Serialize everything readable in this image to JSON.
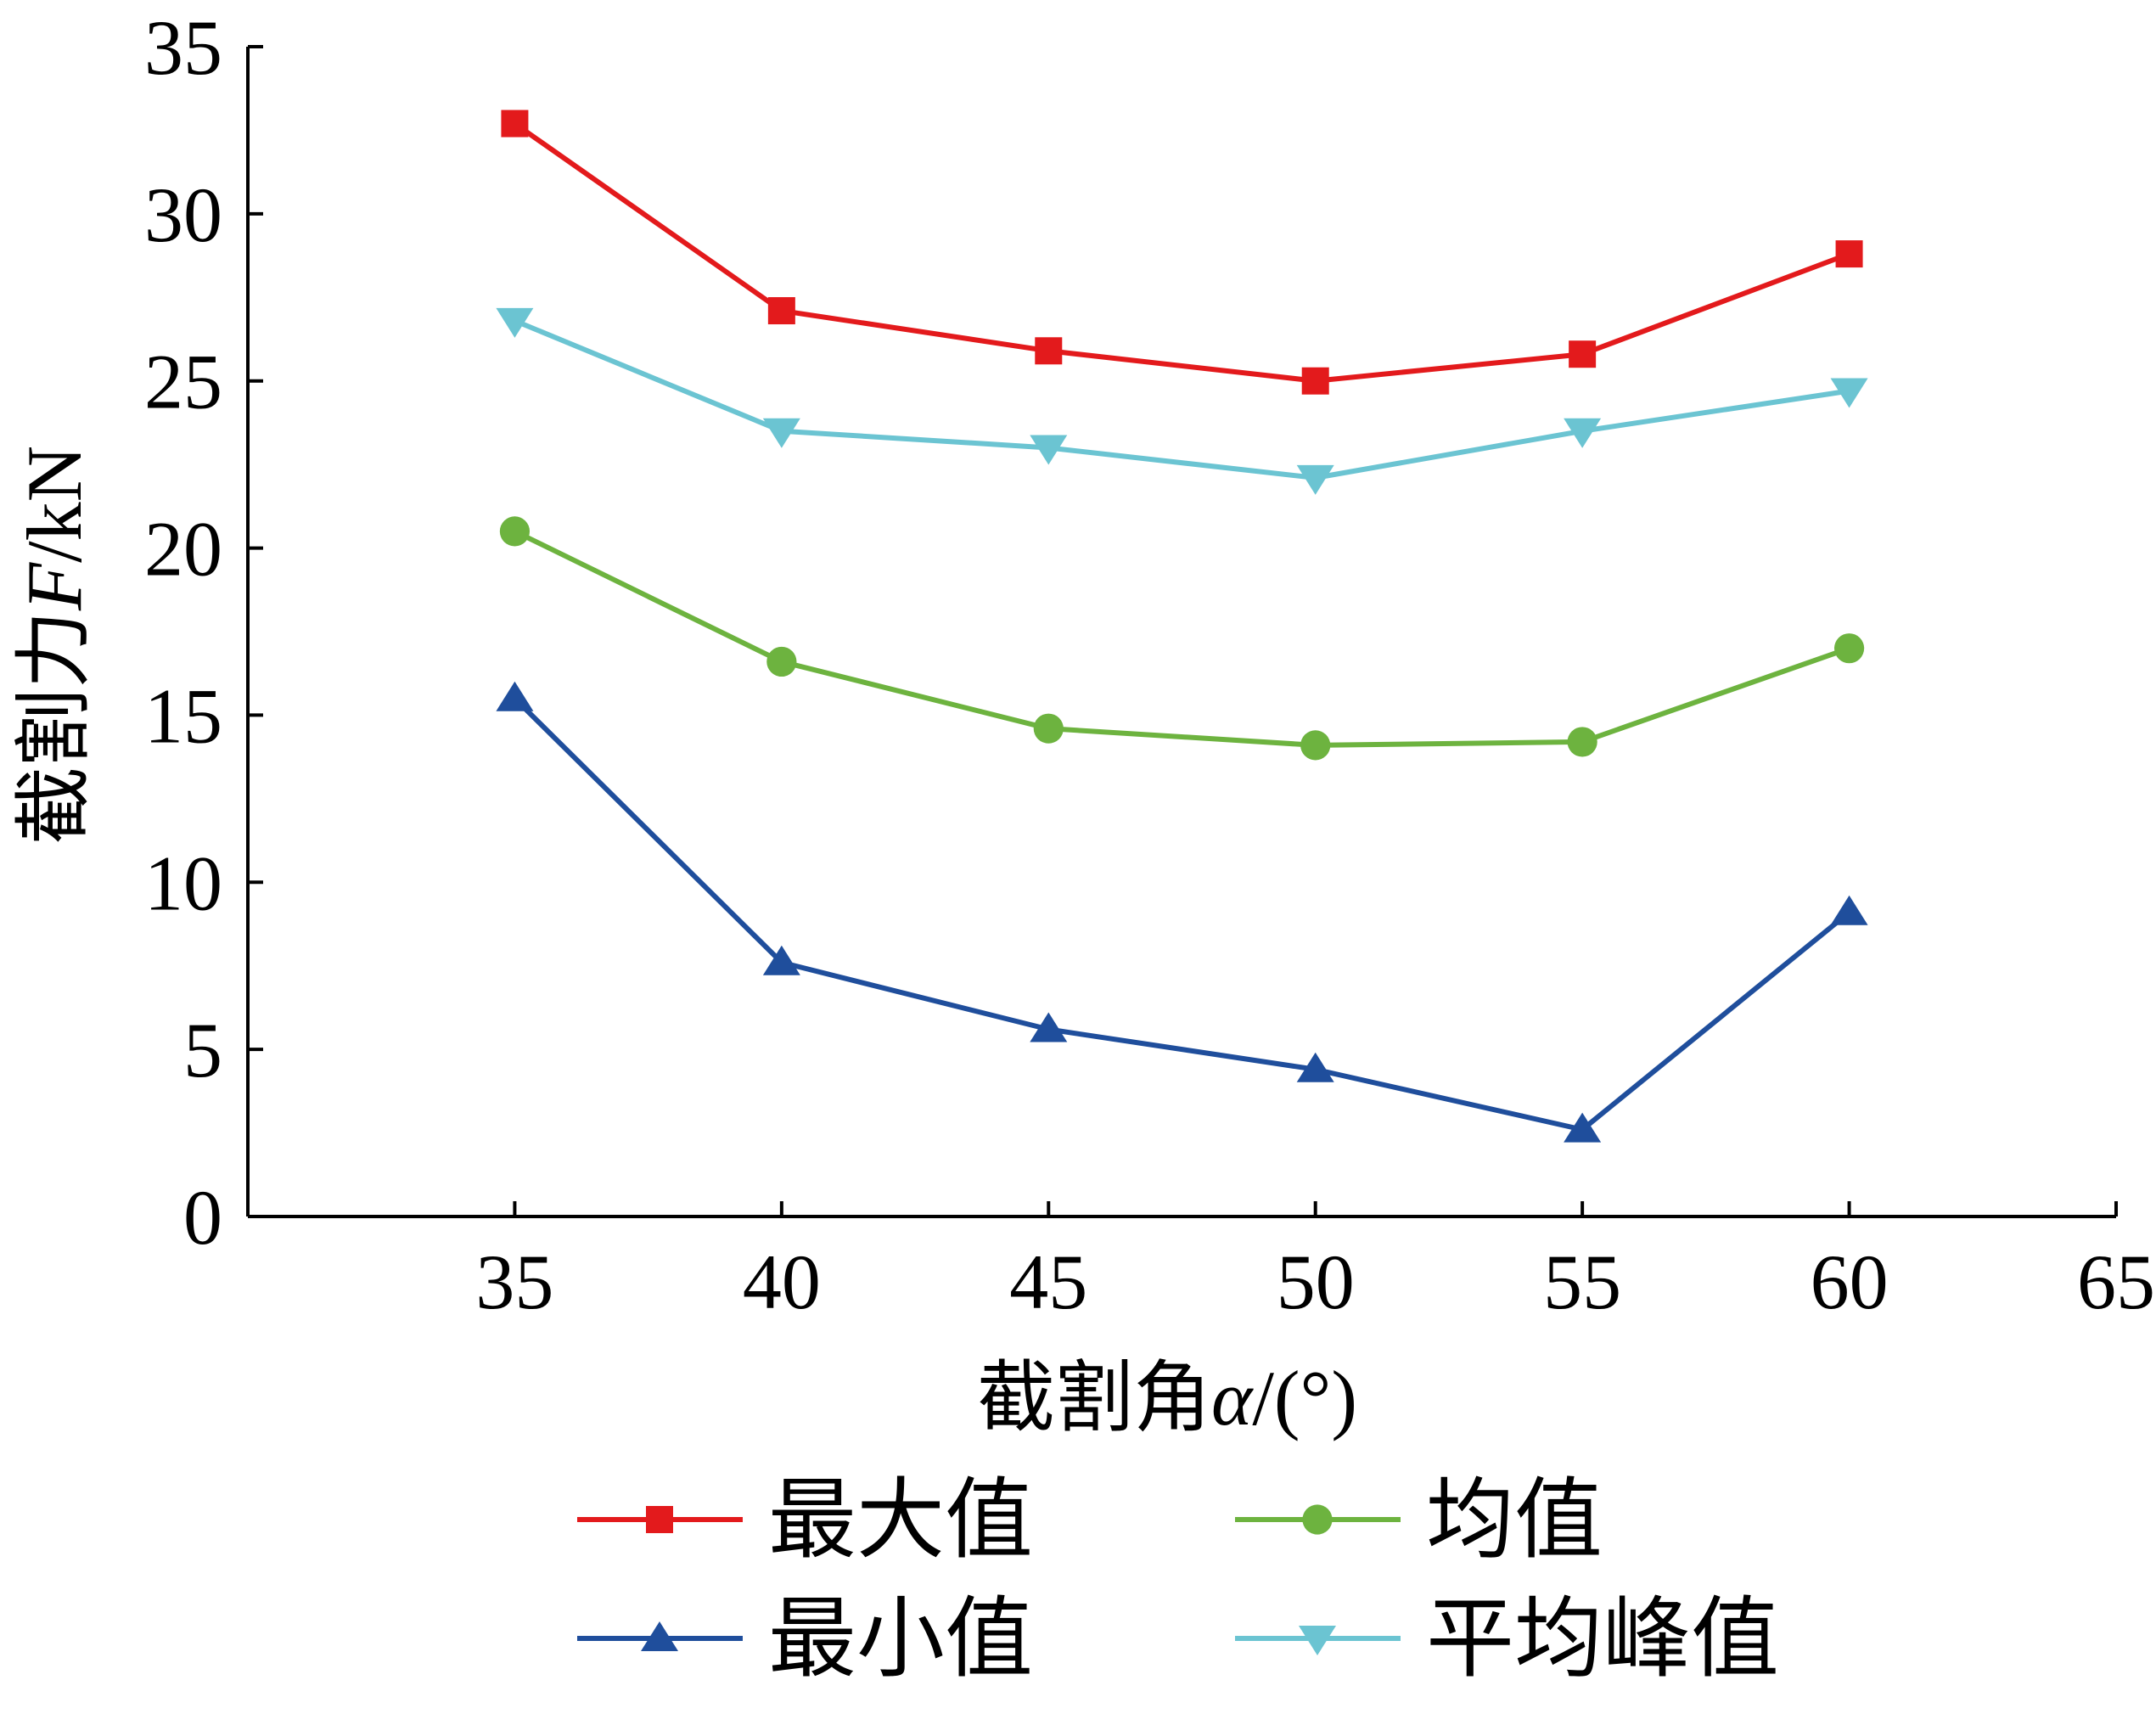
{
  "chart_data": {
    "type": "line",
    "xlabel": {
      "prefix": "截割角",
      "symbol": "α",
      "suffix": "/(°)"
    },
    "ylabel": {
      "prefix": "截割力",
      "symbol": "F",
      "suffix": "/kN"
    },
    "xlim": [
      30,
      65
    ],
    "ylim": [
      0,
      35
    ],
    "xticks": [
      35,
      40,
      45,
      50,
      55,
      60,
      65
    ],
    "yticks": [
      0,
      5,
      10,
      15,
      20,
      25,
      30,
      35
    ],
    "x": [
      35,
      40,
      45,
      50,
      55,
      60
    ],
    "series": [
      {
        "name": "最大值",
        "marker": "square",
        "color": "#e31a1c",
        "values": [
          32.7,
          27.1,
          25.9,
          25.0,
          25.8,
          28.8
        ]
      },
      {
        "name": "均值",
        "marker": "circle",
        "color": "#6db33f",
        "values": [
          20.5,
          16.6,
          14.6,
          14.1,
          14.2,
          17.0
        ]
      },
      {
        "name": "最小值",
        "marker": "triangle-up",
        "color": "#1f4e9c",
        "values": [
          15.5,
          7.6,
          5.6,
          4.4,
          2.6,
          9.1
        ]
      },
      {
        "name": "平均峰值",
        "marker": "triangle-down",
        "color": "#6bc4d2",
        "values": [
          26.8,
          23.5,
          23.0,
          22.1,
          23.5,
          24.7
        ]
      }
    ],
    "legend_position": "bottom",
    "grid": false
  }
}
